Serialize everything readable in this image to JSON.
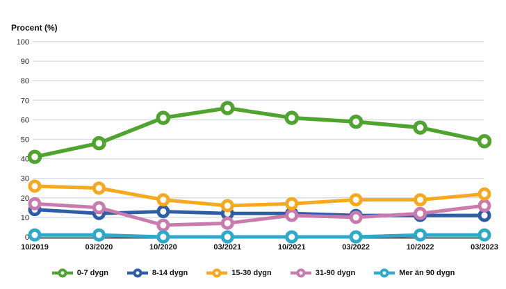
{
  "chart_data": {
    "type": "line",
    "title": "Procent (%)",
    "x_labels": [
      "10/2019",
      "03/2020",
      "10/2020",
      "03/2021",
      "10/2021",
      "03/2022",
      "10/2022",
      "03/2023"
    ],
    "y_ticks": [
      0,
      10,
      20,
      30,
      40,
      50,
      60,
      70,
      80,
      90,
      100
    ],
    "ylim": [
      0,
      100
    ],
    "grid": true,
    "legend_position": "bottom",
    "series": [
      {
        "name": "0-7 dygn",
        "color": "#4fa32f",
        "values": [
          41,
          48,
          61,
          66,
          61,
          59,
          56,
          49
        ]
      },
      {
        "name": "8-14 dygn",
        "color": "#2d5da6",
        "values": [
          14,
          12,
          13,
          12,
          12,
          11,
          11,
          11
        ]
      },
      {
        "name": "15-30 dygn",
        "color": "#f6a81f",
        "values": [
          26,
          25,
          19,
          16,
          17,
          19,
          19,
          22
        ]
      },
      {
        "name": "31-90 dygn",
        "color": "#c87cae",
        "values": [
          17,
          15,
          6,
          7,
          11,
          10,
          12,
          16
        ]
      },
      {
        "name": "Mer än 90 dygn",
        "color": "#2ea9c9",
        "values": [
          1,
          1,
          0,
          0,
          0,
          0,
          1,
          1
        ]
      }
    ],
    "colors": {
      "grid": "#d9dde3",
      "axis": "#4a4a4a",
      "text": "#1a1a1a",
      "marker_fill": "#ffffff"
    }
  }
}
